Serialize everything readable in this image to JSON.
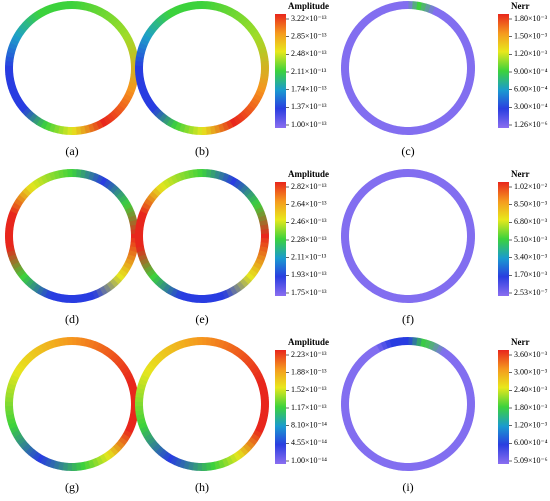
{
  "panels": [
    {
      "label": "(a)"
    },
    {
      "label": "(b)"
    },
    {
      "label": "(c)"
    },
    {
      "label": "(d)"
    },
    {
      "label": "(e)"
    },
    {
      "label": "(f)"
    },
    {
      "label": "(g)"
    },
    {
      "label": "(h)"
    },
    {
      "label": "(i)"
    }
  ],
  "colorbars": [
    {
      "title": "Amplitude",
      "ticks": [
        "3.22×10⁻¹³",
        "2.85×10⁻¹³",
        "2.48×10⁻¹³",
        "2.11×10⁻¹³",
        "1.74×10⁻¹³",
        "1.37×10⁻¹³",
        "1.00×10⁻¹³"
      ]
    },
    {
      "title": "Nerr",
      "ticks": [
        "1.80×10⁻³",
        "1.50×10⁻³",
        "1.20×10⁻³",
        "9.00×10⁻⁴",
        "6.00×10⁻⁴",
        "3.00×10⁻⁴",
        "1.26×10⁻⁶"
      ]
    },
    {
      "title": "Amplitude",
      "ticks": [
        "2.82×10⁻¹³",
        "2.64×10⁻¹³",
        "2.46×10⁻¹³",
        "2.28×10⁻¹³",
        "2.11×10⁻¹³",
        "1.93×10⁻¹³",
        "1.75×10⁻¹³"
      ]
    },
    {
      "title": "Nerr",
      "ticks": [
        "1.02×10⁻²",
        "8.50×10⁻³",
        "6.80×10⁻³",
        "5.10×10⁻³",
        "3.40×10⁻³",
        "1.70×10⁻³",
        "2.53×10⁻⁷"
      ]
    },
    {
      "title": "Amplitude",
      "ticks": [
        "2.23×10⁻¹³",
        "1.88×10⁻¹³",
        "1.52×10⁻¹³",
        "1.17×10⁻¹³",
        "8.10×10⁻¹⁴",
        "4.55×10⁻¹⁴",
        "1.00×10⁻¹⁴"
      ]
    },
    {
      "title": "Nerr",
      "ticks": [
        "3.60×10⁻³",
        "3.00×10⁻³",
        "2.40×10⁻³",
        "1.80×10⁻³",
        "1.20×10⁻³",
        "6.00×10⁻⁴",
        "5.09×10⁻⁶"
      ]
    }
  ]
}
